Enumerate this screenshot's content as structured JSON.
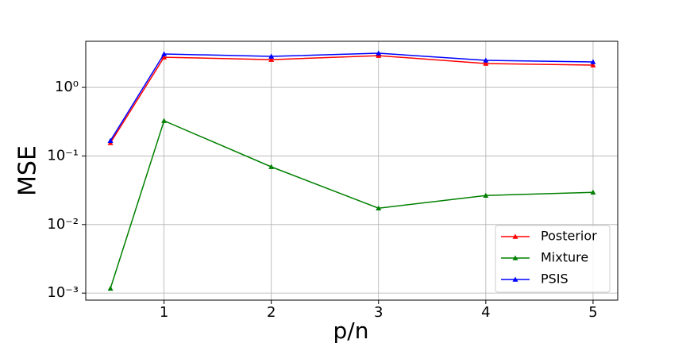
{
  "chart_data": {
    "type": "line",
    "xlabel": "p/n",
    "ylabel": "MSE",
    "x": [
      0.5,
      1,
      2,
      3,
      4,
      5
    ],
    "series": [
      {
        "name": "Posterior",
        "color": "#ff0000",
        "values": [
          0.155,
          2.75,
          2.54,
          2.9,
          2.23,
          2.11
        ]
      },
      {
        "name": "Mixture",
        "color": "#008000",
        "values": [
          0.00117,
          0.326,
          0.0694,
          0.0173,
          0.0265,
          0.0295
        ]
      },
      {
        "name": "PSIS",
        "color": "#0000ff",
        "values": [
          0.167,
          3.07,
          2.83,
          3.15,
          2.48,
          2.35
        ]
      }
    ],
    "xlim": [
      0.27,
      5.23
    ],
    "xticks": [
      1,
      2,
      3,
      4,
      5
    ],
    "ylim": [
      0.00079,
      4.7
    ],
    "yticks": [
      {
        "value": 0.001,
        "label": "10⁻³"
      },
      {
        "value": 0.01,
        "label": "10⁻²"
      },
      {
        "value": 0.1,
        "label": "10⁻¹"
      },
      {
        "value": 1,
        "label": "10⁰"
      }
    ],
    "ylog": true,
    "grid": true,
    "legend": "lower right"
  }
}
